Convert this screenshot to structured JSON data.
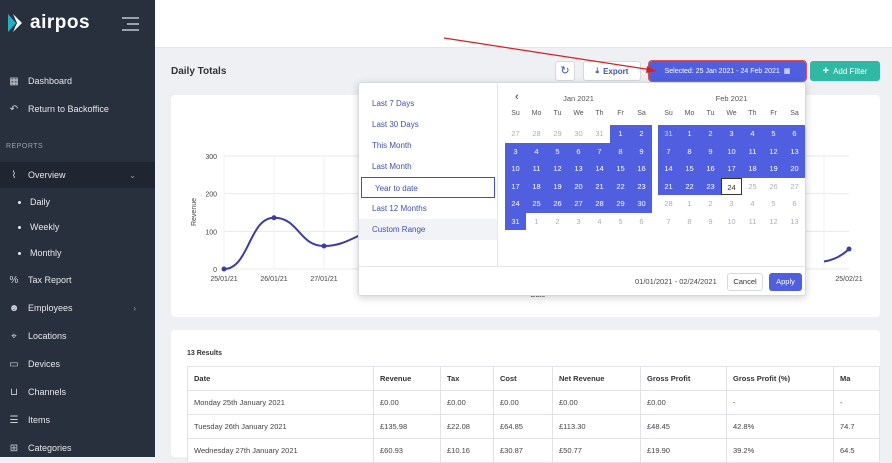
{
  "app": {
    "name": "airpos"
  },
  "sidebar": {
    "items_top": [
      {
        "label": "Dashboard",
        "icon": "dashboard-icon"
      },
      {
        "label": "Return to Backoffice",
        "icon": "return-icon"
      }
    ],
    "section_label": "REPORTS",
    "overview": {
      "label": "Overview"
    },
    "sub_items": [
      {
        "label": "Daily"
      },
      {
        "label": "Weekly"
      },
      {
        "label": "Monthly"
      }
    ],
    "items_bottom": [
      {
        "label": "Tax Report"
      },
      {
        "label": "Employees"
      },
      {
        "label": "Locations"
      },
      {
        "label": "Devices"
      },
      {
        "label": "Channels"
      },
      {
        "label": "Items"
      },
      {
        "label": "Categories"
      }
    ]
  },
  "header": {
    "title": "Daily Totals",
    "export_label": "Export",
    "date_button_label": "Selected: 25 Jan 2021 - 24 Feb 2021",
    "add_filter_label": "Add Filter"
  },
  "chart_data": {
    "type": "line",
    "ylabel": "Revenue",
    "xlabel": "Date",
    "yticks": [
      "0",
      "100",
      "200",
      "300"
    ],
    "ylim": [
      0,
      300
    ],
    "x_tick_labels": [
      "25/01/21",
      "26/01/21",
      "27/01/21",
      "25/02/21"
    ],
    "series": [
      {
        "values": [
          0,
          136,
          61
        ]
      }
    ],
    "last_value": 53,
    "accent": "#3b3bb0"
  },
  "date_picker": {
    "ranges": [
      "Last 7 Days",
      "Last 30 Days",
      "This Month",
      "Last Month",
      "Year to date",
      "Last 12 Months",
      "Custom Range"
    ],
    "selected_range_index": 4,
    "dow": [
      "Su",
      "Mo",
      "Tu",
      "We",
      "Th",
      "Fr",
      "Sa"
    ],
    "left_month": "Jan 2021",
    "right_month": "Feb 2021",
    "left_days": [
      "27",
      "28",
      "29",
      "30",
      "31",
      "1",
      "2",
      "3",
      "4",
      "5",
      "6",
      "7",
      "8",
      "9",
      "10",
      "11",
      "12",
      "13",
      "14",
      "15",
      "16",
      "17",
      "18",
      "19",
      "20",
      "21",
      "22",
      "23",
      "24",
      "25",
      "26",
      "27",
      "28",
      "29",
      "30",
      "31",
      "1",
      "2",
      "3",
      "4",
      "5",
      "6"
    ],
    "right_days": [
      "31",
      "1",
      "2",
      "3",
      "4",
      "5",
      "6",
      "7",
      "8",
      "9",
      "10",
      "11",
      "12",
      "13",
      "14",
      "15",
      "16",
      "17",
      "18",
      "19",
      "20",
      "21",
      "22",
      "23",
      "24",
      "25",
      "26",
      "27",
      "28",
      "1",
      "2",
      "3",
      "4",
      "5",
      "6",
      "7",
      "8",
      "9",
      "10",
      "11",
      "12",
      "13"
    ],
    "range_text": "01/01/2021 - 02/24/2021",
    "cancel_label": "Cancel",
    "apply_label": "Apply"
  },
  "table": {
    "results_label": "13 Results",
    "headers": [
      "Date",
      "Revenue",
      "Tax",
      "Cost",
      "Net Revenue",
      "Gross Profit",
      "Gross Profit (%)",
      "Ma"
    ],
    "rows": [
      [
        "Monday 25th January 2021",
        "£0.00",
        "£0.00",
        "£0.00",
        "£0.00",
        "£0.00",
        "-",
        "-"
      ],
      [
        "Tuesday 26th January 2021",
        "£135.98",
        "£22.08",
        "£64.85",
        "£113.30",
        "£48.45",
        "42.8%",
        "74.7"
      ],
      [
        "Wednesday 27th January 2021",
        "£60.93",
        "£10.16",
        "£30.87",
        "£50.77",
        "£19.90",
        "39.2%",
        "64.5"
      ]
    ]
  }
}
